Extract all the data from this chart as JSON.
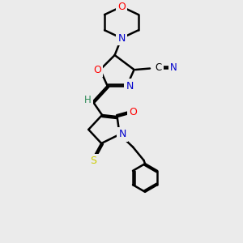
{
  "bg_color": "#ebebeb",
  "atom_colors": {
    "C": "#000000",
    "N": "#0000cc",
    "O": "#ff0000",
    "S": "#cccc00",
    "H": "#2e8b57"
  },
  "bond_color": "#000000",
  "bond_width": 1.8,
  "figsize": [
    3.0,
    3.0
  ],
  "dpi": 100,
  "xlim": [
    0,
    10
  ],
  "ylim": [
    0,
    10
  ]
}
